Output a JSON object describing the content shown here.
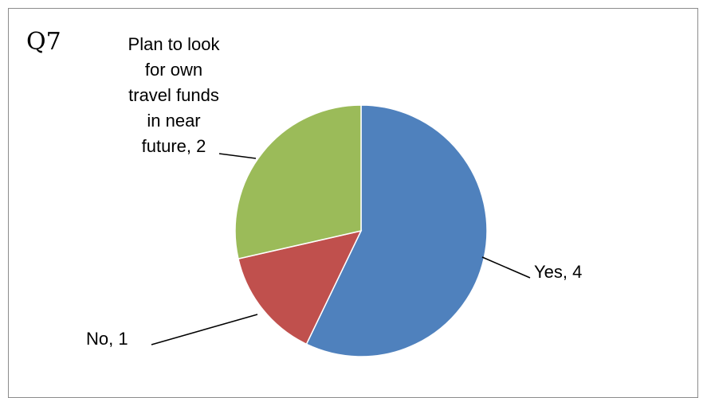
{
  "chart_data": {
    "type": "pie",
    "title": "Q7",
    "categories": [
      "Yes",
      "No",
      "Plan to look for own travel funds in near future"
    ],
    "values": [
      4,
      1,
      2
    ],
    "colors": [
      "#4f81bd",
      "#c0504d",
      "#9bbb59"
    ],
    "data_labels": [
      [
        "Yes, 4"
      ],
      [
        "No, 1"
      ],
      [
        "Plan to look",
        "for own",
        "travel funds",
        "in near",
        "future, 2"
      ]
    ],
    "start_angle_deg": 0,
    "direction": "clockwise",
    "legend": "none"
  }
}
